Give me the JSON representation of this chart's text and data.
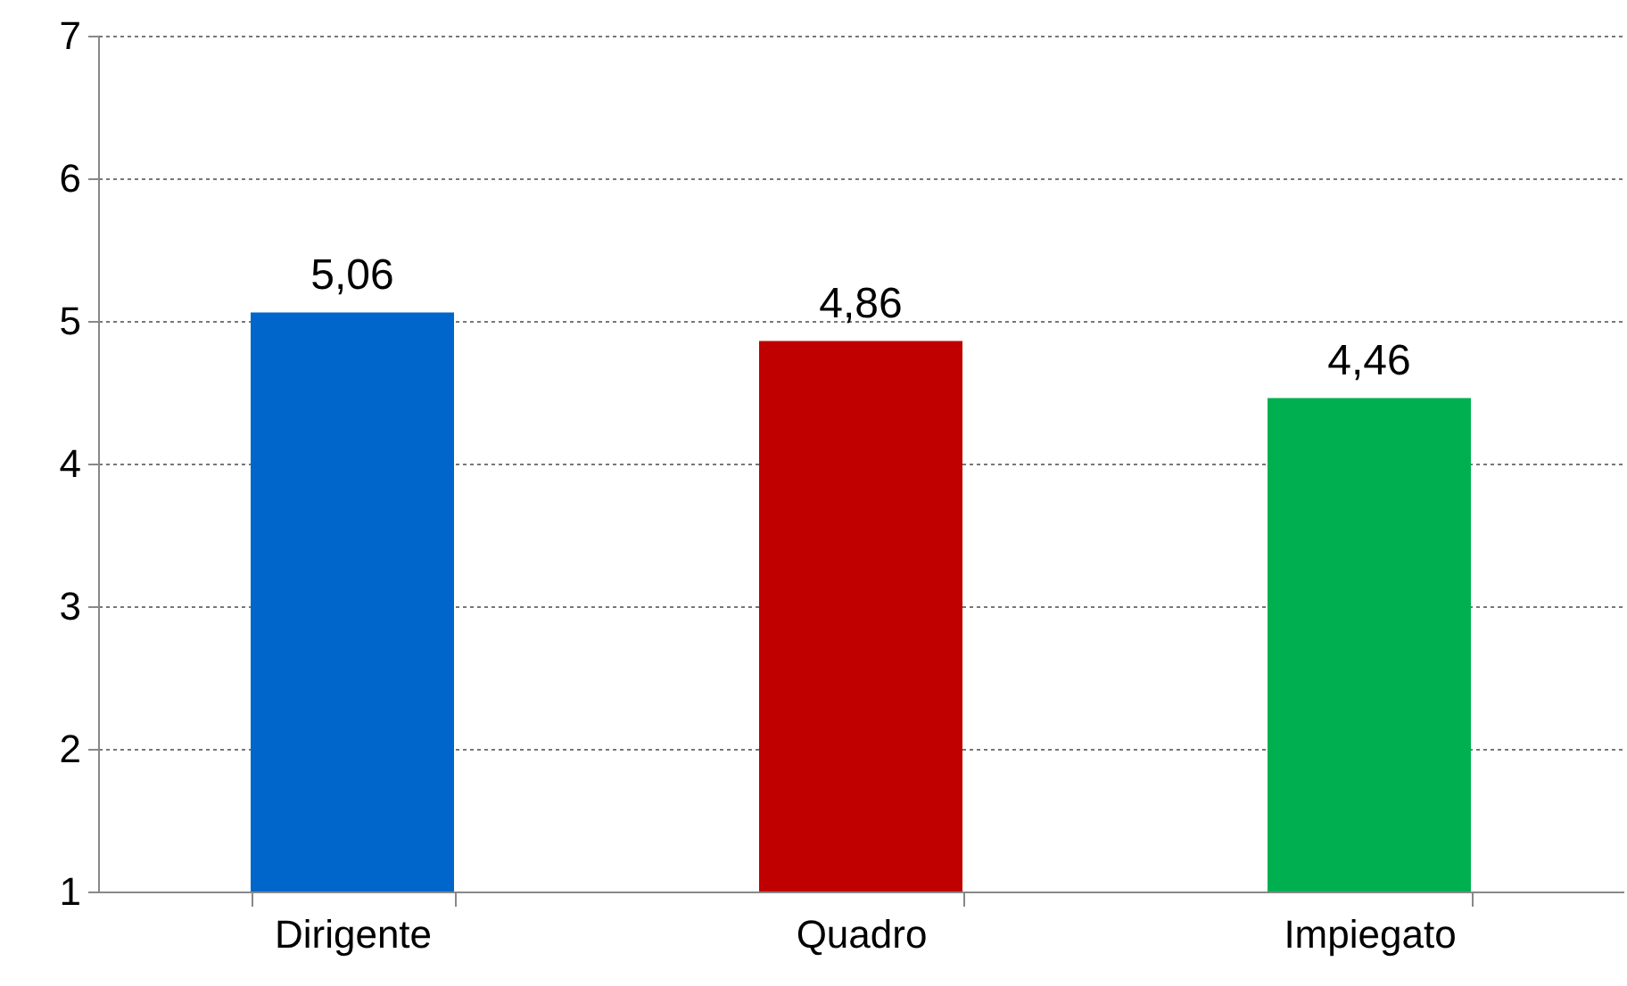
{
  "chart_data": {
    "type": "bar",
    "categories": [
      "Dirigente",
      "Quadro",
      "Impiegato"
    ],
    "values": [
      5.06,
      4.86,
      4.46
    ],
    "colors": [
      "#0066cc",
      "#c00000",
      "#00b050"
    ],
    "value_labels": [
      "5,06",
      "4,86",
      "4,46"
    ],
    "ylim": [
      1,
      7
    ],
    "yticks": [
      1,
      2,
      3,
      4,
      5,
      6,
      7
    ],
    "grid": "y"
  }
}
